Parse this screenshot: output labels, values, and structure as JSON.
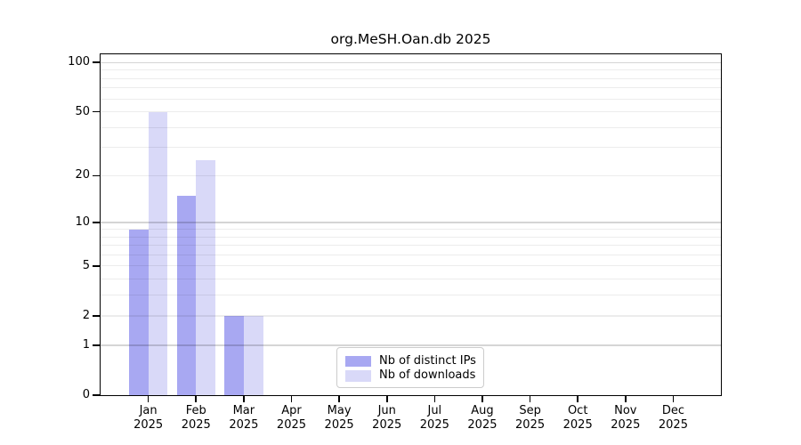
{
  "chart_data": {
    "type": "bar",
    "title": "org.MeSH.Oan.db 2025",
    "y_scale": "log10(value+1)",
    "categories": [
      "Jan",
      "Feb",
      "Mar",
      "Apr",
      "May",
      "Jun",
      "Jul",
      "Aug",
      "Sep",
      "Oct",
      "Nov",
      "Dec"
    ],
    "x_tick_year": "2025",
    "series": [
      {
        "name": "Nb of distinct IPs",
        "color": "#a8a8f2",
        "values": [
          9,
          15,
          2,
          0,
          0,
          0,
          0,
          0,
          0,
          0,
          0,
          0
        ]
      },
      {
        "name": "Nb of downloads",
        "color": "#d9d9f8",
        "values": [
          50,
          25,
          2,
          0,
          0,
          0,
          0,
          0,
          0,
          0,
          0,
          0
        ]
      }
    ],
    "y_ticks": [
      0,
      1,
      2,
      5,
      10,
      20,
      50,
      100
    ],
    "grid": {
      "minor": [
        2,
        3,
        4,
        5,
        6,
        7,
        8,
        9,
        20,
        30,
        40,
        50,
        60,
        70,
        80,
        90
      ],
      "major": [
        1,
        10,
        100
      ]
    },
    "ylim": [
      0,
      110
    ],
    "xlabel": "",
    "ylabel": "",
    "legend": {
      "position": "lower center",
      "entries": [
        "Nb of distinct IPs",
        "Nb of downloads"
      ]
    }
  }
}
